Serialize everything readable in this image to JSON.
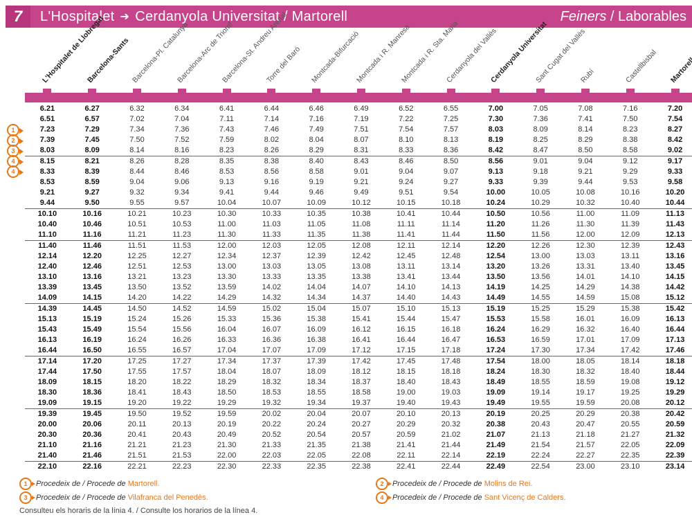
{
  "header": {
    "line": "7",
    "from": "L'Hospitalet",
    "to": "Cerdanyola Universitat / Martorell",
    "days_italic": "Feiners",
    "days_rest": " / Laborables"
  },
  "stations": [
    {
      "name": "L'Hospitalet de Llobregat",
      "bold": true
    },
    {
      "name": "Barcelona-Sants",
      "bold": true
    },
    {
      "name": "Barcelona-Pl. Catalunya",
      "bold": false
    },
    {
      "name": "Barcelona-Arc de Triomf",
      "bold": false
    },
    {
      "name": "Barcelona-St. Andreu Arenal",
      "bold": false
    },
    {
      "name": "Torre del Baró",
      "bold": false
    },
    {
      "name": "Montcada-Bifurcació",
      "bold": false
    },
    {
      "name": "Montcada i R. Manresa",
      "bold": false
    },
    {
      "name": "Montcada i R. Sta. Maria",
      "bold": false
    },
    {
      "name": "Cerdanyola del Vallès",
      "bold": false
    },
    {
      "name": "Cerdanyola Universitat",
      "bold": true
    },
    {
      "name": "Sant Cugat del Vallès",
      "bold": false
    },
    {
      "name": "Rubí",
      "bold": false
    },
    {
      "name": "Castellbisbal",
      "bold": false
    },
    {
      "name": "Martorell",
      "bold": true
    }
  ],
  "bold_cols": [
    0,
    1,
    10,
    14
  ],
  "row_markers": {
    "2": "1",
    "3": "2",
    "4": "3",
    "5": "4",
    "6": "4"
  },
  "sep_after": [
    4,
    9,
    12,
    18,
    23,
    28,
    33
  ],
  "rows": [
    [
      "6.21",
      "6.27",
      "6.32",
      "6.34",
      "6.41",
      "6.44",
      "6.46",
      "6.49",
      "6.52",
      "6.55",
      "7.00",
      "7.05",
      "7.08",
      "7.16",
      "7.20"
    ],
    [
      "6.51",
      "6.57",
      "7.02",
      "7.04",
      "7.11",
      "7.14",
      "7.16",
      "7.19",
      "7.22",
      "7.25",
      "7.30",
      "7.36",
      "7.41",
      "7.50",
      "7.54"
    ],
    [
      "7.23",
      "7.29",
      "7.34",
      "7.36",
      "7.43",
      "7.46",
      "7.49",
      "7.51",
      "7.54",
      "7.57",
      "8.03",
      "8.09",
      "8.14",
      "8.23",
      "8.27"
    ],
    [
      "7.39",
      "7.45",
      "7.50",
      "7.52",
      "7.59",
      "8.02",
      "8.04",
      "8.07",
      "8.10",
      "8.13",
      "8.19",
      "8.25",
      "8.29",
      "8.38",
      "8.42"
    ],
    [
      "8.03",
      "8.09",
      "8.14",
      "8.16",
      "8.23",
      "8.26",
      "8.29",
      "8.31",
      "8.33",
      "8.36",
      "8.42",
      "8.47",
      "8.50",
      "8.58",
      "9.02"
    ],
    [
      "8.15",
      "8.21",
      "8.26",
      "8.28",
      "8.35",
      "8.38",
      "8.40",
      "8.43",
      "8.46",
      "8.50",
      "8.56",
      "9.01",
      "9.04",
      "9.12",
      "9.17"
    ],
    [
      "8.33",
      "8.39",
      "8.44",
      "8.46",
      "8.53",
      "8.56",
      "8.58",
      "9.01",
      "9.04",
      "9.07",
      "9.13",
      "9.18",
      "9.21",
      "9.29",
      "9.33"
    ],
    [
      "8.53",
      "8.59",
      "9.04",
      "9.06",
      "9.13",
      "9.16",
      "9.19",
      "9.21",
      "9.24",
      "9.27",
      "9.33",
      "9.39",
      "9.44",
      "9.53",
      "9.58"
    ],
    [
      "9.21",
      "9.27",
      "9.32",
      "9.34",
      "9.41",
      "9.44",
      "9.46",
      "9.49",
      "9.51",
      "9.54",
      "10.00",
      "10.05",
      "10.08",
      "10.16",
      "10.20"
    ],
    [
      "9.44",
      "9.50",
      "9.55",
      "9.57",
      "10.04",
      "10.07",
      "10.09",
      "10.12",
      "10.15",
      "10.18",
      "10.24",
      "10.29",
      "10.32",
      "10.40",
      "10.44"
    ],
    [
      "10.10",
      "10.16",
      "10.21",
      "10.23",
      "10.30",
      "10.33",
      "10.35",
      "10.38",
      "10.41",
      "10.44",
      "10.50",
      "10.56",
      "11.00",
      "11.09",
      "11.13"
    ],
    [
      "10.40",
      "10.46",
      "10.51",
      "10.53",
      "11.00",
      "11.03",
      "11.05",
      "11.08",
      "11.11",
      "11.14",
      "11.20",
      "11.26",
      "11.30",
      "11.39",
      "11.43"
    ],
    [
      "11.10",
      "11.16",
      "11.21",
      "11.23",
      "11.30",
      "11.33",
      "11.35",
      "11.38",
      "11.41",
      "11.44",
      "11.50",
      "11.56",
      "12.00",
      "12.09",
      "12.13"
    ],
    [
      "11.40",
      "11.46",
      "11.51",
      "11.53",
      "12.00",
      "12.03",
      "12.05",
      "12.08",
      "12.11",
      "12.14",
      "12.20",
      "12.26",
      "12.30",
      "12.39",
      "12.43"
    ],
    [
      "12.14",
      "12.20",
      "12.25",
      "12.27",
      "12.34",
      "12.37",
      "12.39",
      "12.42",
      "12.45",
      "12.48",
      "12.54",
      "13.00",
      "13.03",
      "13.11",
      "13.16"
    ],
    [
      "12.40",
      "12.46",
      "12.51",
      "12.53",
      "13.00",
      "13.03",
      "13.05",
      "13.08",
      "13.11",
      "13.14",
      "13.20",
      "13.26",
      "13.31",
      "13.40",
      "13.45"
    ],
    [
      "13.10",
      "13.16",
      "13.21",
      "13.23",
      "13.30",
      "13.33",
      "13.35",
      "13.38",
      "13.41",
      "13.44",
      "13.50",
      "13.56",
      "14.01",
      "14.10",
      "14.15"
    ],
    [
      "13.39",
      "13.45",
      "13.50",
      "13.52",
      "13.59",
      "14.02",
      "14.04",
      "14.07",
      "14.10",
      "14.13",
      "14.19",
      "14.25",
      "14.29",
      "14.38",
      "14.42"
    ],
    [
      "14.09",
      "14.15",
      "14.20",
      "14.22",
      "14.29",
      "14.32",
      "14.34",
      "14.37",
      "14.40",
      "14.43",
      "14.49",
      "14.55",
      "14.59",
      "15.08",
      "15.12"
    ],
    [
      "14.39",
      "14.45",
      "14.50",
      "14.52",
      "14.59",
      "15.02",
      "15.04",
      "15.07",
      "15.10",
      "15.13",
      "15.19",
      "15.25",
      "15.29",
      "15.38",
      "15.42"
    ],
    [
      "15.13",
      "15.19",
      "15.24",
      "15.26",
      "15.33",
      "15.36",
      "15.38",
      "15.41",
      "15.44",
      "15.47",
      "15.53",
      "15.58",
      "16.01",
      "16.09",
      "16.13"
    ],
    [
      "15.43",
      "15.49",
      "15.54",
      "15.56",
      "16.04",
      "16.07",
      "16.09",
      "16.12",
      "16.15",
      "16.18",
      "16.24",
      "16.29",
      "16.32",
      "16.40",
      "16.44"
    ],
    [
      "16.13",
      "16.19",
      "16.24",
      "16.26",
      "16.33",
      "16.36",
      "16.38",
      "16.41",
      "16.44",
      "16.47",
      "16.53",
      "16.59",
      "17.01",
      "17.09",
      "17.13"
    ],
    [
      "16.44",
      "16.50",
      "16.55",
      "16.57",
      "17.04",
      "17.07",
      "17.09",
      "17.12",
      "17.15",
      "17.18",
      "17.24",
      "17.30",
      "17.34",
      "17.42",
      "17.46"
    ],
    [
      "17.14",
      "17.20",
      "17.25",
      "17.27",
      "17.34",
      "17.37",
      "17.39",
      "17.42",
      "17.45",
      "17.48",
      "17.54",
      "18.00",
      "18.05",
      "18.14",
      "18.18"
    ],
    [
      "17.44",
      "17.50",
      "17.55",
      "17.57",
      "18.04",
      "18.07",
      "18.09",
      "18.12",
      "18.15",
      "18.18",
      "18.24",
      "18.30",
      "18.32",
      "18.40",
      "18.44"
    ],
    [
      "18.09",
      "18.15",
      "18.20",
      "18.22",
      "18.29",
      "18.32",
      "18.34",
      "18.37",
      "18.40",
      "18.43",
      "18.49",
      "18.55",
      "18.59",
      "19.08",
      "19.12"
    ],
    [
      "18.30",
      "18.36",
      "18.41",
      "18.43",
      "18.50",
      "18.53",
      "18.55",
      "18.58",
      "19.00",
      "19.03",
      "19.09",
      "19.14",
      "19.17",
      "19.25",
      "19.29"
    ],
    [
      "19.09",
      "19.15",
      "19.20",
      "19.22",
      "19.29",
      "19.32",
      "19.34",
      "19.37",
      "19.40",
      "19.43",
      "19.49",
      "19.55",
      "19.59",
      "20.08",
      "20.12"
    ],
    [
      "19.39",
      "19.45",
      "19.50",
      "19.52",
      "19.59",
      "20.02",
      "20.04",
      "20.07",
      "20.10",
      "20.13",
      "20.19",
      "20.25",
      "20.29",
      "20.38",
      "20.42"
    ],
    [
      "20.00",
      "20.06",
      "20.11",
      "20.13",
      "20.19",
      "20.22",
      "20.24",
      "20.27",
      "20.29",
      "20.32",
      "20.38",
      "20.43",
      "20.47",
      "20.55",
      "20.59"
    ],
    [
      "20.30",
      "20.36",
      "20.41",
      "20.43",
      "20.49",
      "20.52",
      "20.54",
      "20.57",
      "20.59",
      "21.02",
      "21.07",
      "21.13",
      "21.18",
      "21.27",
      "21.32"
    ],
    [
      "21.10",
      "21.16",
      "21.21",
      "21.23",
      "21.30",
      "21.33",
      "21.35",
      "21.38",
      "21.41",
      "21.44",
      "21.49",
      "21.54",
      "21.57",
      "22.05",
      "22.09"
    ],
    [
      "21.40",
      "21.46",
      "21.51",
      "21.53",
      "22.00",
      "22.03",
      "22.05",
      "22.08",
      "22.11",
      "22.14",
      "22.19",
      "22.24",
      "22.27",
      "22.35",
      "22.39"
    ],
    [
      "22.10",
      "22.16",
      "22.21",
      "22.23",
      "22.30",
      "22.33",
      "22.35",
      "22.38",
      "22.41",
      "22.44",
      "22.49",
      "22.54",
      "23.00",
      "23.10",
      "23.14"
    ]
  ],
  "legend": [
    {
      "num": "1",
      "text": "Procedeix de / Procede de ",
      "hl": "Martorell."
    },
    {
      "num": "2",
      "text": "Procedeix de / Procede de ",
      "hl": "Molins de Rei."
    },
    {
      "num": "3",
      "text": "Procedeix de / Procede de ",
      "hl": "Vilafranca del Penedès."
    },
    {
      "num": "4",
      "text": "Procedeix de / Procede de ",
      "hl": "Sant Vicenç de Calders."
    }
  ],
  "consult": "Consulteu els horaris de la línia 4. / Consulte los horarios de la línea 4."
}
